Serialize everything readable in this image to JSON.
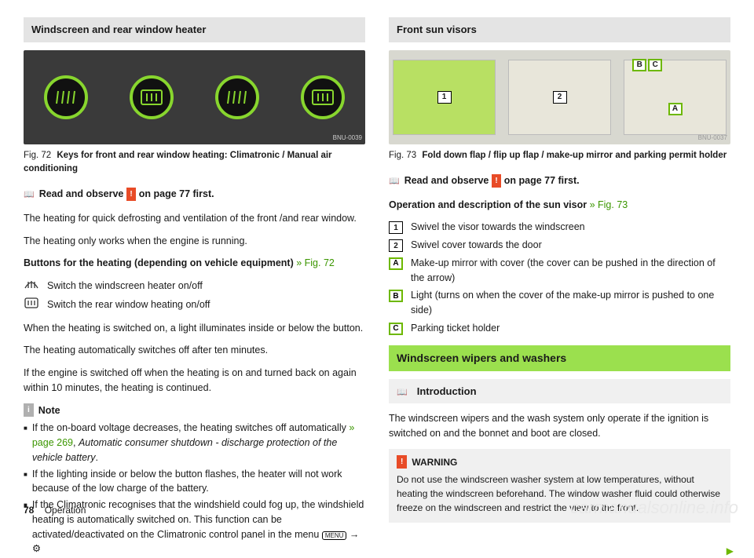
{
  "page": {
    "number": "78",
    "section": "Operation"
  },
  "watermark": "carmanualsonline.info",
  "left": {
    "header": "Windscreen and rear window heater",
    "fig_img_id": "BNU-0039",
    "fig_num": "Fig. 72",
    "fig_title": "Keys for front and rear window heating: Climatronic / Manual air conditioning",
    "read_line_a": "Read and observe",
    "read_line_b": "on page 77 first.",
    "p1": "The heating for quick defrosting and ventilation of the front /and rear window.",
    "p2": "The heating only works when the engine is running.",
    "p3a": "Buttons for the heating (depending on vehicle equipment)",
    "p3b": " » Fig. 72",
    "btn1": "Switch the windscreen heater on/off",
    "btn2": "Switch the rear window heating on/off",
    "p4": "When the heating is switched on, a light illuminates inside or below the button.",
    "p5": "The heating automatically switches off after ten minutes.",
    "p6": "If the engine is switched off when the heating is on and turned back on again within 10 minutes, the heating is continued.",
    "note_label": "Note",
    "note1a": "If the on-board voltage decreases, the heating switches off automatically ",
    "note1b": "» page 269",
    "note1c": ", ",
    "note1d": "Automatic consumer shutdown - discharge protection of the vehicle battery",
    "note1e": ".",
    "note2": "If the lighting inside or below the button flashes, the heater will not work because of the low charge of the battery.",
    "note3a": "If the Climatronic recognises that the windshield could fog up, the windshield heating is automatically switched on. This function can be activated/deactivated on the Climatronic control panel in the menu ",
    "note3b": "MENU",
    "note3c": " → ",
    "note3d": "⚙"
  },
  "right": {
    "header": "Front sun visors",
    "fig_img_id": "BNU-0037",
    "fig_num": "Fig. 73",
    "fig_title": "Fold down flap / flip up flap / make-up mirror and parking permit holder",
    "read_line_a": "Read and observe",
    "read_line_b": "on page 77 first.",
    "op_label_a": "Operation and description of the sun visor",
    "op_label_b": " » Fig. 73",
    "items": [
      {
        "k": "1",
        "t": "Swivel the visor towards the windscreen",
        "cls": "boxed-num"
      },
      {
        "k": "2",
        "t": "Swivel cover towards the door",
        "cls": "boxed-num"
      },
      {
        "k": "A",
        "t": "Make-up mirror with cover (the cover can be pushed in the direction of the arrow)",
        "cls": "boxed-letter"
      },
      {
        "k": "B",
        "t": "Light (turns on when the cover of the make-up mirror is pushed to one side)",
        "cls": "boxed-letter"
      },
      {
        "k": "C",
        "t": "Parking ticket holder",
        "cls": "boxed-letter"
      }
    ],
    "sec2": "Windscreen wipers and washers",
    "sub": "Introduction",
    "p1": "The windscreen wipers and the wash system only operate if the ignition is switched on and the bonnet and boot are closed.",
    "warn_head": "WARNING",
    "warn_body": "Do not use the windscreen washer system at low temperatures, without heating the windscreen beforehand. The window washer fluid could otherwise freeze on the windscreen and restrict the view to the front.",
    "visor_labels": {
      "one": "1",
      "two": "2",
      "a": "A",
      "b": "B",
      "c": "C"
    }
  }
}
